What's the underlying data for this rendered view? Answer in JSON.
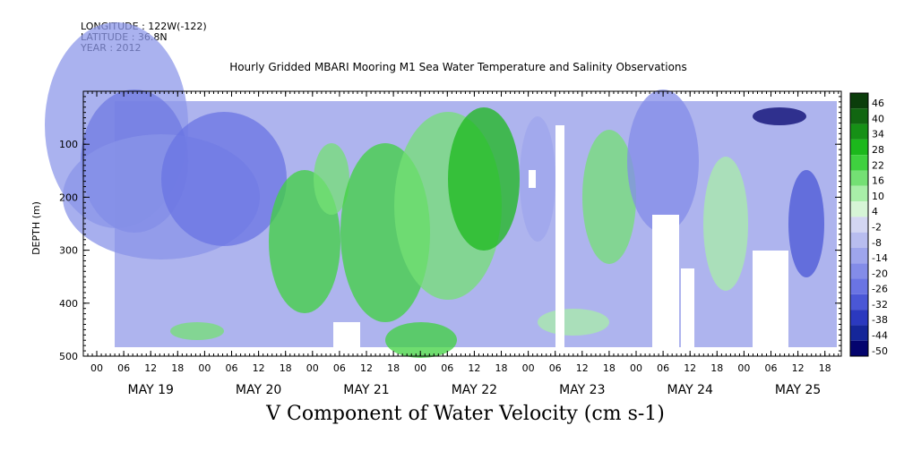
{
  "header": {
    "longitude": "LONGITUDE : 122W(-122)",
    "latitude": "LATITUDE : 36.8N",
    "year": "YEAR : 2012"
  },
  "chart_data": {
    "type": "heatmap",
    "title": "Hourly Gridded MBARI Mooring M1 Sea Water Temperature and Salinity Observations",
    "xlabel": "V Component of Water Velocity (cm s-1)",
    "ylabel": "DEPTH (m)",
    "ylim": [
      500,
      0
    ],
    "yticks": [
      100,
      200,
      300,
      400,
      500
    ],
    "x_hour_ticks": [
      "00",
      "06",
      "12",
      "18",
      "00",
      "06",
      "12",
      "18",
      "00",
      "06",
      "12",
      "18",
      "00",
      "06",
      "12",
      "18",
      "00",
      "06",
      "12",
      "18",
      "00",
      "06",
      "12",
      "18",
      "00",
      "06",
      "12",
      "18"
    ],
    "x_day_labels": [
      "MAY 19",
      "MAY 20",
      "MAY 21",
      "MAY 22",
      "MAY 23",
      "MAY 24",
      "MAY 25"
    ],
    "colorbar": {
      "levels": [
        46,
        40,
        34,
        28,
        22,
        16,
        10,
        4,
        -2,
        -8,
        -14,
        -20,
        -26,
        -32,
        -38,
        -44,
        -50
      ],
      "colors": [
        "#0b3d0b",
        "#116611",
        "#169016",
        "#1cb81c",
        "#3fd13f",
        "#74e074",
        "#a8eea8",
        "#d6f5d6",
        "#d3d6f2",
        "#b8bdef",
        "#9ea5ec",
        "#838ce8",
        "#6a74e3",
        "#4a57d6",
        "#2b39bf",
        "#152699",
        "#04046e"
      ]
    },
    "data_summary": {
      "rows": [
        "MAY 19",
        "MAY 20",
        "MAY 21",
        "MAY 22",
        "MAY 23",
        "MAY 24",
        "MAY 25"
      ],
      "dominant": [
        "negative (blue)",
        "negative (blue)",
        "positive (green)",
        "positive (green)",
        "mixed",
        "negative (blue)",
        "negative (blue)"
      ]
    }
  }
}
